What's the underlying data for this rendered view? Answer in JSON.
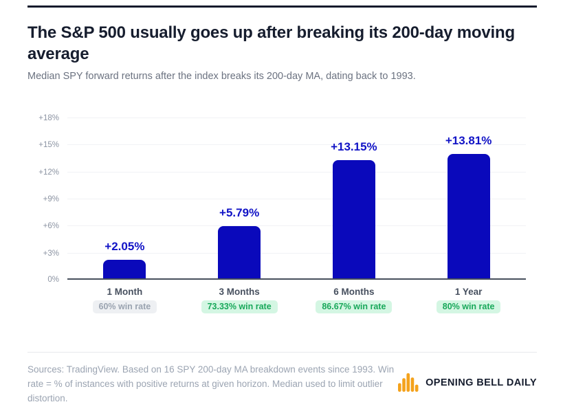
{
  "header": {
    "title": "The S&P 500 usually goes up after breaking its 200-day moving average",
    "subtitle": "Median SPY forward returns after the index breaks its 200-day MA, dating back to 1993."
  },
  "chart_data": {
    "type": "bar",
    "title": "The S&P 500 usually goes up after breaking its 200-day moving average",
    "subtitle": "Median SPY forward returns after the index breaks its 200-day MA, dating back to 1993.",
    "categories": [
      "1 Month",
      "3 Months",
      "6 Months",
      "1 Year"
    ],
    "values": [
      2.05,
      5.79,
      13.15,
      13.81
    ],
    "value_labels": [
      "+2.05%",
      "+5.79%",
      "+13.15%",
      "+13.81%"
    ],
    "win_rates": [
      "60% win rate",
      "73.33% win rate",
      "86.67% win rate",
      "80% win rate"
    ],
    "win_rate_styles": [
      "neutral",
      "positive",
      "positive",
      "positive"
    ],
    "xlabel": "",
    "ylabel": "",
    "ylim": [
      0,
      18
    ],
    "ytick_step": 3,
    "ytick_labels_top_to_bottom": [
      "+18%",
      "+15%",
      "+12%",
      "+9%",
      "+6%",
      "+3%",
      "0%"
    ],
    "grid": true,
    "legend": false,
    "bar_color": "#0a09bb"
  },
  "footer": {
    "sources_text": "Sources: TradingView. Based on 16 SPY 200-day MA breakdown events since 1993. Win rate = % of instances with positive returns at given horizon. Median used to limit outlier distortion.",
    "brand_name": "OPENING BELL DAILY"
  },
  "colors": {
    "top_rule": "#111a2b",
    "title_text": "#161d2e",
    "subtitle_text": "#6b7280",
    "bar_blue": "#0a09bb",
    "value_label_blue": "#1113c6",
    "axis_baseline": "#474f5c",
    "gridline": "#f1f2f5",
    "ytick_text": "#8b93a2",
    "category_text": "#47505f",
    "badge_neutral_bg": "#eef0f3",
    "badge_neutral_text": "#9aa3b0",
    "badge_positive_bg": "#d4f6e3",
    "badge_positive_text": "#18a85a",
    "footer_text": "#9ba4b2",
    "brand_orange": "#f4a21c",
    "brand_text": "#161d2e"
  }
}
